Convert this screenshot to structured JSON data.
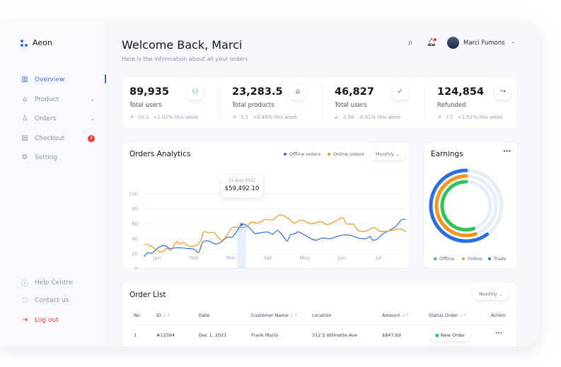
{
  "app": {
    "name": "Aeon"
  },
  "sidebar": {
    "items": [
      {
        "label": "Overview",
        "icon": "bar-chart-icon",
        "active": true
      },
      {
        "label": "Product",
        "icon": "basket-icon",
        "chevron": true
      },
      {
        "label": "Orders",
        "icon": "user-icon",
        "chevron": true
      },
      {
        "label": "Checkout",
        "icon": "receipt-icon",
        "badge": "2"
      },
      {
        "label": "Setting",
        "icon": "gear-icon"
      }
    ],
    "bottom": [
      {
        "label": "Help Centre",
        "icon": "info-icon"
      },
      {
        "label": "Contact us",
        "icon": "chat-icon"
      },
      {
        "label": "Log out",
        "icon": "logout-icon"
      }
    ]
  },
  "header": {
    "title": "Welcome Back, Marci",
    "subtitle": "Here is the information about all your orders",
    "user": "Marci Fumons"
  },
  "stats": [
    {
      "value": "89,935",
      "label": "Total users",
      "delta": "10.2",
      "change": "+1.01% this week",
      "trend": "up",
      "icon": "users-icon",
      "glyph": "⚇"
    },
    {
      "value": "23,283.5",
      "label": "Total products",
      "delta": "3.1",
      "change": "+0.49% this week",
      "trend": "up",
      "icon": "basket-icon",
      "glyph": "⌂"
    },
    {
      "value": "46,827",
      "label": "Total users",
      "delta": "2.56",
      "change": "-0.91% this week",
      "trend": "down",
      "icon": "check-circle-icon",
      "glyph": "✓"
    },
    {
      "value": "124,854",
      "label": "Refunded",
      "delta": "7.2",
      "change": "+1.51% this week",
      "trend": "up",
      "icon": "redo-icon",
      "glyph": "↪"
    }
  ],
  "colors": {
    "accent": "#3a6fe0",
    "offline": "#2d6ee8",
    "online": "#f7941d",
    "trade_green": "#2ec45a",
    "up": "#2ec45a",
    "down": "#f03d3d"
  },
  "analytics": {
    "title": "Orders Analytics",
    "period": "Monthly",
    "tooltip": {
      "date": "15 Aug 2022",
      "value": "$59,492.10"
    }
  },
  "chart_data": {
    "type": "line",
    "ylim": [
      0,
      100
    ],
    "yticks": [
      "0",
      "20",
      "40",
      "60",
      "80",
      "100"
    ],
    "categories": [
      "Jan",
      "Feb",
      "Mar",
      "Apr",
      "May",
      "Jun",
      "Jul"
    ],
    "grid": true,
    "legend": "top-right",
    "highlight": {
      "x": 3.29,
      "y": 59
    },
    "series": [
      {
        "name": "Offline orders",
        "color": "#2d6ee8",
        "points": [
          [
            0.65,
            16
          ],
          [
            0.74,
            21
          ],
          [
            0.87,
            21
          ],
          [
            1.03,
            28
          ],
          [
            1.19,
            31
          ],
          [
            1.35,
            27
          ],
          [
            1.55,
            28
          ],
          [
            1.81,
            27
          ],
          [
            2.0,
            26
          ],
          [
            2.13,
            22
          ],
          [
            2.23,
            35
          ],
          [
            2.39,
            37
          ],
          [
            2.58,
            33
          ],
          [
            2.71,
            35
          ],
          [
            2.9,
            42
          ],
          [
            3.03,
            42
          ],
          [
            3.16,
            50
          ],
          [
            3.29,
            59
          ],
          [
            3.42,
            58
          ],
          [
            3.55,
            52
          ],
          [
            3.65,
            47
          ],
          [
            3.81,
            48
          ],
          [
            4.0,
            49
          ],
          [
            4.13,
            46
          ],
          [
            4.26,
            51
          ],
          [
            4.39,
            45
          ],
          [
            4.52,
            37
          ],
          [
            4.61,
            45
          ],
          [
            4.74,
            47
          ],
          [
            4.84,
            49
          ],
          [
            5.1,
            42
          ],
          [
            5.29,
            38
          ],
          [
            5.48,
            41
          ],
          [
            5.68,
            40
          ],
          [
            5.94,
            44
          ],
          [
            6.19,
            45
          ],
          [
            6.45,
            41
          ],
          [
            6.65,
            40
          ],
          [
            6.77,
            43
          ],
          [
            6.84,
            38
          ],
          [
            6.97,
            40
          ],
          [
            7.1,
            46
          ],
          [
            7.29,
            51
          ],
          [
            7.48,
            57
          ],
          [
            7.61,
            65
          ],
          [
            7.74,
            66
          ]
        ]
      },
      {
        "name": "Online orders",
        "color": "#f7941d",
        "points": [
          [
            0.65,
            33
          ],
          [
            0.81,
            31
          ],
          [
            0.97,
            26
          ],
          [
            1.13,
            22
          ],
          [
            1.26,
            27
          ],
          [
            1.39,
            25
          ],
          [
            1.52,
            36
          ],
          [
            1.58,
            33
          ],
          [
            1.71,
            35
          ],
          [
            1.87,
            30
          ],
          [
            2.06,
            31
          ],
          [
            2.19,
            38
          ],
          [
            2.26,
            49
          ],
          [
            2.39,
            48
          ],
          [
            2.55,
            48
          ],
          [
            2.65,
            42
          ],
          [
            2.77,
            38
          ],
          [
            2.9,
            45
          ],
          [
            3.03,
            55
          ],
          [
            3.23,
            55
          ],
          [
            3.42,
            56
          ],
          [
            3.55,
            62
          ],
          [
            3.74,
            61
          ],
          [
            3.94,
            66
          ],
          [
            4.13,
            65
          ],
          [
            4.32,
            72
          ],
          [
            4.52,
            68
          ],
          [
            4.71,
            61
          ],
          [
            4.9,
            65
          ],
          [
            5.1,
            61
          ],
          [
            5.23,
            60
          ],
          [
            5.42,
            63
          ],
          [
            5.61,
            59
          ],
          [
            5.81,
            63
          ],
          [
            6.03,
            68
          ],
          [
            6.13,
            60
          ],
          [
            6.32,
            59
          ],
          [
            6.45,
            51
          ],
          [
            6.65,
            50
          ],
          [
            6.87,
            55
          ],
          [
            7.03,
            50
          ],
          [
            7.23,
            50
          ],
          [
            7.42,
            52
          ],
          [
            7.61,
            53
          ],
          [
            7.74,
            49
          ]
        ]
      }
    ]
  },
  "earnings": {
    "title": "Earnings",
    "legend": [
      {
        "label": "Offline",
        "color": "#2ec45a",
        "fraction": 0.55
      },
      {
        "label": "Online",
        "color": "#f7941d",
        "fraction": 0.55
      },
      {
        "label": "Trade",
        "color": "#2d6ee8",
        "fraction": 0.6
      }
    ]
  },
  "orders": {
    "title": "Order List",
    "period": "Monthly",
    "columns": [
      "No",
      "ID",
      "Date",
      "Customer Name",
      "Location",
      "Amount",
      "Status Order",
      "Action"
    ],
    "rows": [
      {
        "no": "1",
        "id": "#12594",
        "date": "Dec 1, 2021",
        "customer": "Frank Murlo",
        "location": "312 S Wilmette Ave",
        "amount": "$847.69",
        "status": "New Order"
      }
    ]
  }
}
